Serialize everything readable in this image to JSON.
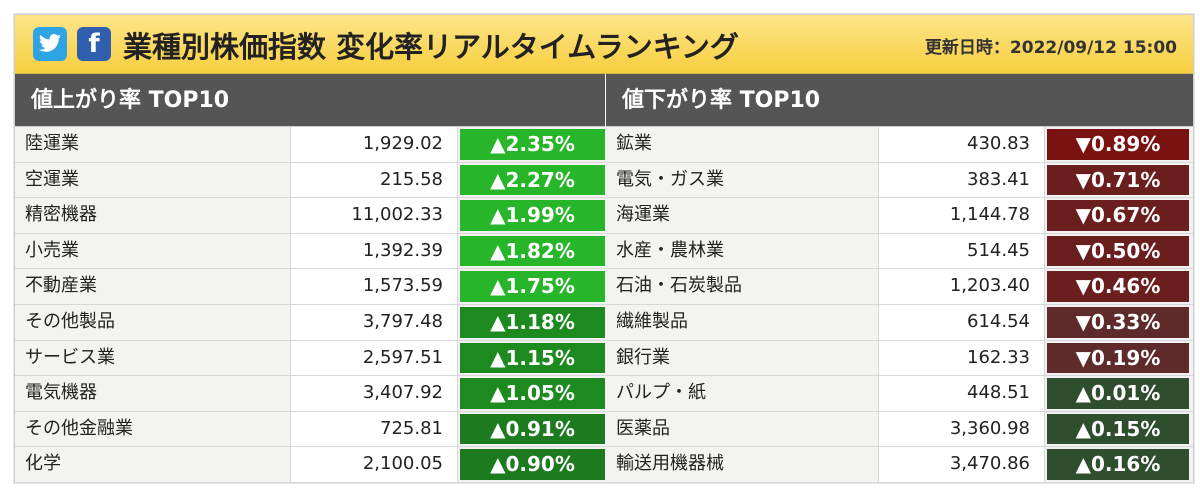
{
  "header": {
    "twitter_glyph": "t",
    "facebook_glyph": "f",
    "title": "業種別株価指数 変化率リアルタイムランキング",
    "updated": "更新日時：2022/09/12 15:00"
  },
  "gainers": {
    "heading": "値上がり率 TOP10",
    "rows": [
      {
        "name": "陸運業",
        "value": "1,929.02",
        "change": "▲2.35%",
        "color": "#27b529"
      },
      {
        "name": "空運業",
        "value": "215.58",
        "change": "▲2.27%",
        "color": "#27b529"
      },
      {
        "name": "精密機器",
        "value": "11,002.33",
        "change": "▲1.99%",
        "color": "#27b529"
      },
      {
        "name": "小売業",
        "value": "1,392.39",
        "change": "▲1.82%",
        "color": "#27b529"
      },
      {
        "name": "不動産業",
        "value": "1,573.59",
        "change": "▲1.75%",
        "color": "#27b529"
      },
      {
        "name": "その他製品",
        "value": "3,797.48",
        "change": "▲1.18%",
        "color": "#1c8a1f"
      },
      {
        "name": "サービス業",
        "value": "2,597.51",
        "change": "▲1.15%",
        "color": "#1c8a1f"
      },
      {
        "name": "電気機器",
        "value": "3,407.92",
        "change": "▲1.05%",
        "color": "#1c8a1f"
      },
      {
        "name": "その他金融業",
        "value": "725.81",
        "change": "▲0.91%",
        "color": "#1c7a1f"
      },
      {
        "name": "化学",
        "value": "2,100.05",
        "change": "▲0.90%",
        "color": "#1c7a1f"
      }
    ]
  },
  "losers": {
    "heading": "値下がり率 TOP10",
    "rows": [
      {
        "name": "鉱業",
        "value": "430.83",
        "change": "▼0.89%",
        "color": "#7a1212"
      },
      {
        "name": "電気・ガス業",
        "value": "383.41",
        "change": "▼0.71%",
        "color": "#6a1e1e"
      },
      {
        "name": "海運業",
        "value": "1,144.78",
        "change": "▼0.67%",
        "color": "#6a1e1e"
      },
      {
        "name": "水産・農林業",
        "value": "514.45",
        "change": "▼0.50%",
        "color": "#6a1e1e"
      },
      {
        "name": "石油・石炭製品",
        "value": "1,203.40",
        "change": "▼0.46%",
        "color": "#6a1e1e"
      },
      {
        "name": "繊維製品",
        "value": "614.54",
        "change": "▼0.33%",
        "color": "#5e2a2a"
      },
      {
        "name": "銀行業",
        "value": "162.33",
        "change": "▼0.19%",
        "color": "#5e2a2a"
      },
      {
        "name": "パルプ・紙",
        "value": "448.51",
        "change": "▲0.01%",
        "color": "#2e4e2e"
      },
      {
        "name": "医薬品",
        "value": "3,360.98",
        "change": "▲0.15%",
        "color": "#2e4e2e"
      },
      {
        "name": "輸送用機器械",
        "value": "3,470.86",
        "change": "▲0.16%",
        "color": "#2e4e2e"
      }
    ]
  }
}
